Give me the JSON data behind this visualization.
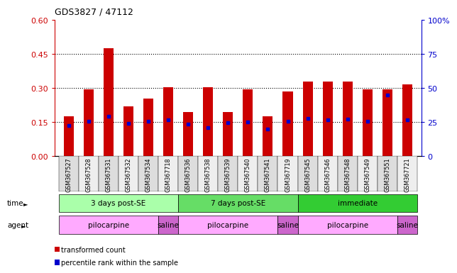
{
  "title": "GDS3827 / 47112",
  "samples": [
    "GSM367527",
    "GSM367528",
    "GSM367531",
    "GSM367532",
    "GSM367534",
    "GSM367718",
    "GSM367536",
    "GSM367538",
    "GSM367539",
    "GSM367540",
    "GSM367541",
    "GSM367719",
    "GSM367545",
    "GSM367546",
    "GSM367548",
    "GSM367549",
    "GSM367551",
    "GSM367721"
  ],
  "transformed_count": [
    0.175,
    0.295,
    0.475,
    0.22,
    0.255,
    0.305,
    0.195,
    0.305,
    0.195,
    0.295,
    0.175,
    0.285,
    0.33,
    0.33,
    0.33,
    0.295,
    0.295,
    0.315
  ],
  "percentile_rank": [
    0.135,
    0.155,
    0.175,
    0.145,
    0.155,
    0.16,
    0.14,
    0.125,
    0.148,
    0.15,
    0.118,
    0.155,
    0.165,
    0.16,
    0.162,
    0.155,
    0.27,
    0.16
  ],
  "ylim_left": [
    0,
    0.6
  ],
  "ylim_right": [
    0,
    100
  ],
  "yticks_left": [
    0,
    0.15,
    0.3,
    0.45,
    0.6
  ],
  "yticks_right": [
    0,
    25,
    50,
    75,
    100
  ],
  "bar_color": "#cc0000",
  "dot_color": "#0000cc",
  "bar_width": 0.5,
  "time_groups": [
    {
      "label": "3 days post-SE",
      "start": 0,
      "end": 6,
      "color": "#aaffaa"
    },
    {
      "label": "7 days post-SE",
      "start": 6,
      "end": 12,
      "color": "#66dd66"
    },
    {
      "label": "immediate",
      "start": 12,
      "end": 18,
      "color": "#33cc33"
    }
  ],
  "agent_groups": [
    {
      "label": "pilocarpine",
      "start": 0,
      "end": 5,
      "color": "#ffaaff"
    },
    {
      "label": "saline",
      "start": 5,
      "end": 6,
      "color": "#cc66cc"
    },
    {
      "label": "pilocarpine",
      "start": 6,
      "end": 11,
      "color": "#ffaaff"
    },
    {
      "label": "saline",
      "start": 11,
      "end": 12,
      "color": "#cc66cc"
    },
    {
      "label": "pilocarpine",
      "start": 12,
      "end": 17,
      "color": "#ffaaff"
    },
    {
      "label": "saline",
      "start": 17,
      "end": 18,
      "color": "#cc66cc"
    }
  ],
  "left_axis_color": "#cc0000",
  "right_axis_color": "#0000cc",
  "legend_items": [
    {
      "label": "transformed count",
      "color": "#cc0000"
    },
    {
      "label": "percentile rank within the sample",
      "color": "#0000cc"
    }
  ]
}
